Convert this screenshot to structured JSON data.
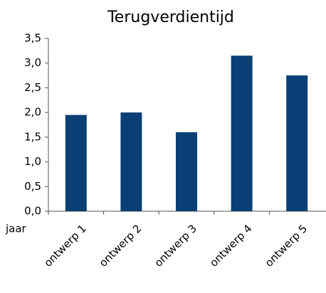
{
  "chart_data": {
    "type": "bar",
    "title": "Terugverdientijd",
    "y_label": "jaar",
    "categories": [
      "ontwerp 1",
      "ontwerp 2",
      "ontwerp 3",
      "ontwerp 4",
      "ontwerp 5"
    ],
    "values": [
      1.95,
      2.0,
      1.6,
      3.15,
      2.75
    ],
    "color": "#0a3f75",
    "ylim": [
      0,
      3.5
    ],
    "yticks": [
      {
        "value": 0,
        "label": "0,0"
      },
      {
        "value": 0.5,
        "label": "0,5"
      },
      {
        "value": 1,
        "label": "1,0"
      },
      {
        "value": 1.5,
        "label": "1,5"
      },
      {
        "value": 2,
        "label": "2,0"
      },
      {
        "value": 2.5,
        "label": "2,5"
      },
      {
        "value": 3,
        "label": "3,0"
      },
      {
        "value": 3.5,
        "label": "3,5"
      }
    ],
    "grid": false
  }
}
